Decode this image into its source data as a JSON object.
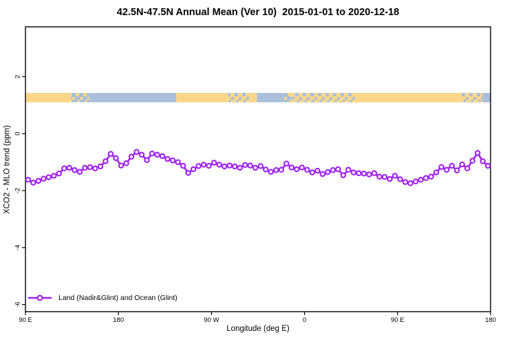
{
  "title_text": "42.5N-47.5N Annual Mean (Ver 10)  2015-01-01 to 2020-12-18",
  "colors": {
    "series": "#A020F0",
    "marker_fill": "#FFFFFF",
    "land_band": "#FBD68A",
    "ocean_band": "#A9BFDA",
    "axis": "#000000"
  },
  "legend": {
    "label": "Land (Nadir&Glint) and Ocean (Glint)",
    "marker": "open-circle-on-line"
  },
  "chart_data": {
    "type": "line",
    "title": "42.5N-47.5N Annual Mean (Ver 10)  2015-01-01 to 2020-12-18",
    "xlabel": "Longitude (deg E)",
    "ylabel": "XCO2 - MLO trend (ppm)",
    "xlim": [
      90,
      540
    ],
    "ylim": [
      -6.25,
      3.75
    ],
    "grid": false,
    "legend_position": "bottom-left-inside",
    "x_ticks": [
      {
        "value": 90,
        "label": "90 E"
      },
      {
        "value": 180,
        "label": "180"
      },
      {
        "value": 270,
        "label": "90 W"
      },
      {
        "value": 360,
        "label": "0"
      },
      {
        "value": 450,
        "label": "90 E"
      },
      {
        "value": 540,
        "label": "180"
      }
    ],
    "y_ticks": [
      {
        "value": 2,
        "label": "2"
      },
      {
        "value": 0,
        "label": "0"
      },
      {
        "value": -2,
        "label": "-2"
      },
      {
        "value": -4,
        "label": "-4"
      },
      {
        "value": -6,
        "label": "-6"
      }
    ],
    "land_ocean_band": {
      "value_top": 1.43,
      "value_bottom": 1.1,
      "segments": [
        {
          "from": 90,
          "to": 134,
          "type": "land"
        },
        {
          "from": 134,
          "to": 152,
          "type": "mixed_ocean"
        },
        {
          "from": 152,
          "to": 236,
          "type": "ocean"
        },
        {
          "from": 236,
          "to": 286,
          "type": "land"
        },
        {
          "from": 286,
          "to": 307,
          "type": "mixed_land"
        },
        {
          "from": 307,
          "to": 314,
          "type": "land"
        },
        {
          "from": 314,
          "to": 340,
          "type": "ocean"
        },
        {
          "from": 340,
          "to": 347,
          "type": "mixed_ocean"
        },
        {
          "from": 347,
          "to": 409,
          "type": "mixed_land"
        },
        {
          "from": 409,
          "to": 512,
          "type": "land"
        },
        {
          "from": 512,
          "to": 532,
          "type": "mixed_land"
        },
        {
          "from": 532,
          "to": 540,
          "type": "ocean"
        }
      ]
    },
    "series": [
      {
        "name": "Land (Nadir&Glint) and Ocean (Glint)",
        "marker": "open-circle",
        "x": [
          92.5,
          97.5,
          102.5,
          107.5,
          112.5,
          117.5,
          122.5,
          127.5,
          132.5,
          137.5,
          142.5,
          147.5,
          152.5,
          157.5,
          162.5,
          167.5,
          172.5,
          177.5,
          182.5,
          187.5,
          192.5,
          197.5,
          202.5,
          207.5,
          212.5,
          217.5,
          222.5,
          227.5,
          232.5,
          237.5,
          242.5,
          247.5,
          252.5,
          257.5,
          262.5,
          267.5,
          272.5,
          277.5,
          282.5,
          287.5,
          292.5,
          297.5,
          302.5,
          307.5,
          312.5,
          317.5,
          322.5,
          327.5,
          332.5,
          337.5,
          342.5,
          347.5,
          352.5,
          357.5,
          362.5,
          367.5,
          372.5,
          377.5,
          382.5,
          387.5,
          392.5,
          397.5,
          402.5,
          407.5,
          412.5,
          417.5,
          422.5,
          427.5,
          432.5,
          437.5,
          442.5,
          447.5,
          452.5,
          457.5,
          462.5,
          467.5,
          472.5,
          477.5,
          482.5,
          487.5,
          492.5,
          497.5,
          502.5,
          507.5,
          512.5,
          517.5,
          522.5,
          527.5,
          532.5,
          537.5
        ],
        "y": [
          -1.62,
          -1.72,
          -1.66,
          -1.58,
          -1.53,
          -1.48,
          -1.4,
          -1.22,
          -1.2,
          -1.28,
          -1.34,
          -1.2,
          -1.18,
          -1.22,
          -1.15,
          -0.97,
          -0.71,
          -0.86,
          -1.12,
          -1.04,
          -0.81,
          -0.64,
          -0.74,
          -0.93,
          -0.7,
          -0.74,
          -0.79,
          -0.89,
          -0.94,
          -1.0,
          -1.13,
          -1.38,
          -1.25,
          -1.14,
          -1.09,
          -1.13,
          -1.02,
          -1.09,
          -1.15,
          -1.12,
          -1.15,
          -1.2,
          -1.1,
          -1.12,
          -1.2,
          -1.14,
          -1.26,
          -1.34,
          -1.28,
          -1.27,
          -1.05,
          -1.19,
          -1.25,
          -1.19,
          -1.27,
          -1.36,
          -1.3,
          -1.42,
          -1.35,
          -1.28,
          -1.25,
          -1.46,
          -1.27,
          -1.36,
          -1.39,
          -1.4,
          -1.43,
          -1.39,
          -1.51,
          -1.52,
          -1.59,
          -1.48,
          -1.6,
          -1.7,
          -1.74,
          -1.68,
          -1.62,
          -1.56,
          -1.51,
          -1.36,
          -1.17,
          -1.27,
          -1.13,
          -1.29,
          -1.08,
          -1.22,
          -0.95,
          -0.68,
          -0.97,
          -1.13
        ]
      }
    ]
  }
}
